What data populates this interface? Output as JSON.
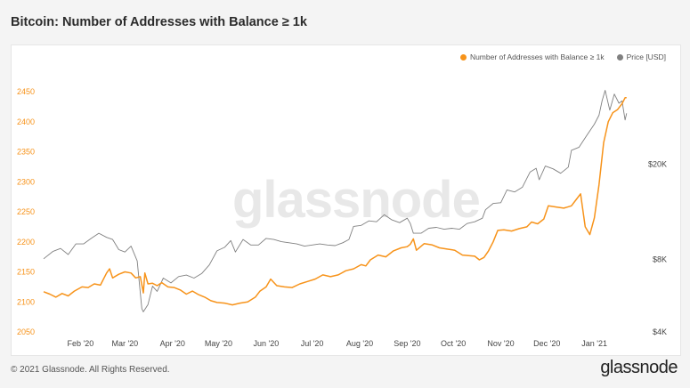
{
  "title": "Bitcoin: Number of Addresses with Balance ≥ 1k",
  "legend": [
    {
      "label": "Number of Addresses with Balance ≥ 1k",
      "color": "#f7931a"
    },
    {
      "label": "Price [USD]",
      "color": "#808080"
    }
  ],
  "watermark": "glassnode",
  "footer": {
    "copyright": "© 2021 Glassnode. All Rights Reserved.",
    "logo": "glassnode"
  },
  "chart_data": {
    "type": "line",
    "x_range": [
      "2020-01-08",
      "2021-01-25"
    ],
    "x_ticks": [
      {
        "label": "Feb '20",
        "date": "2020-02-01"
      },
      {
        "label": "Mar '20",
        "date": "2020-03-01"
      },
      {
        "label": "Apr '20",
        "date": "2020-04-01"
      },
      {
        "label": "May '20",
        "date": "2020-05-01"
      },
      {
        "label": "Jun '20",
        "date": "2020-06-01"
      },
      {
        "label": "Jul '20",
        "date": "2020-07-01"
      },
      {
        "label": "Aug '20",
        "date": "2020-08-01"
      },
      {
        "label": "Sep '20",
        "date": "2020-09-01"
      },
      {
        "label": "Oct '20",
        "date": "2020-10-01"
      },
      {
        "label": "Nov '20",
        "date": "2020-11-01"
      },
      {
        "label": "Dec '20",
        "date": "2020-12-01"
      },
      {
        "label": "Jan '21",
        "date": "2021-01-01"
      }
    ],
    "y_left": {
      "ylim": [
        2050,
        2450
      ],
      "ticks": [
        2050,
        2100,
        2150,
        2200,
        2250,
        2300,
        2350,
        2400,
        2450
      ],
      "color": "#f7931a"
    },
    "y_right": {
      "scale": "log",
      "ylim": [
        4000,
        40000
      ],
      "ticks": [
        {
          "value": 4000,
          "label": "$4K"
        },
        {
          "value": 8000,
          "label": "$8K"
        },
        {
          "value": 20000,
          "label": "$20K"
        }
      ],
      "color": "#444444"
    },
    "grid": false,
    "series": [
      {
        "name": "Number of Addresses with Balance ≥ 1k",
        "axis": "left",
        "color": "#f7931a",
        "points": [
          [
            "2020-01-08",
            2117
          ],
          [
            "2020-01-12",
            2113
          ],
          [
            "2020-01-16",
            2108
          ],
          [
            "2020-01-20",
            2114
          ],
          [
            "2020-01-24",
            2110
          ],
          [
            "2020-01-28",
            2118
          ],
          [
            "2020-02-02",
            2125
          ],
          [
            "2020-02-06",
            2124
          ],
          [
            "2020-02-10",
            2130
          ],
          [
            "2020-02-14",
            2128
          ],
          [
            "2020-02-18",
            2148
          ],
          [
            "2020-02-20",
            2155
          ],
          [
            "2020-02-22",
            2140
          ],
          [
            "2020-02-26",
            2146
          ],
          [
            "2020-03-01",
            2150
          ],
          [
            "2020-03-05",
            2148
          ],
          [
            "2020-03-08",
            2140
          ],
          [
            "2020-03-11",
            2142
          ],
          [
            "2020-03-13",
            2115
          ],
          [
            "2020-03-14",
            2148
          ],
          [
            "2020-03-16",
            2130
          ],
          [
            "2020-03-19",
            2131
          ],
          [
            "2020-03-22",
            2127
          ],
          [
            "2020-03-25",
            2132
          ],
          [
            "2020-03-29",
            2125
          ],
          [
            "2020-04-02",
            2124
          ],
          [
            "2020-04-06",
            2120
          ],
          [
            "2020-04-10",
            2113
          ],
          [
            "2020-04-14",
            2118
          ],
          [
            "2020-04-18",
            2112
          ],
          [
            "2020-04-22",
            2108
          ],
          [
            "2020-04-26",
            2102
          ],
          [
            "2020-04-30",
            2099
          ],
          [
            "2020-05-05",
            2098
          ],
          [
            "2020-05-10",
            2095
          ],
          [
            "2020-05-15",
            2098
          ],
          [
            "2020-05-20",
            2100
          ],
          [
            "2020-05-25",
            2108
          ],
          [
            "2020-05-28",
            2118
          ],
          [
            "2020-06-01",
            2125
          ],
          [
            "2020-06-04",
            2138
          ],
          [
            "2020-06-08",
            2127
          ],
          [
            "2020-06-13",
            2125
          ],
          [
            "2020-06-18",
            2124
          ],
          [
            "2020-06-23",
            2130
          ],
          [
            "2020-06-28",
            2134
          ],
          [
            "2020-07-03",
            2138
          ],
          [
            "2020-07-08",
            2145
          ],
          [
            "2020-07-13",
            2142
          ],
          [
            "2020-07-18",
            2145
          ],
          [
            "2020-07-23",
            2152
          ],
          [
            "2020-07-28",
            2155
          ],
          [
            "2020-08-02",
            2162
          ],
          [
            "2020-08-05",
            2160
          ],
          [
            "2020-08-08",
            2170
          ],
          [
            "2020-08-13",
            2178
          ],
          [
            "2020-08-18",
            2175
          ],
          [
            "2020-08-23",
            2185
          ],
          [
            "2020-08-28",
            2190
          ],
          [
            "2020-09-01",
            2192
          ],
          [
            "2020-09-03",
            2196
          ],
          [
            "2020-09-05",
            2205
          ],
          [
            "2020-09-07",
            2186
          ],
          [
            "2020-09-12",
            2197
          ],
          [
            "2020-09-17",
            2195
          ],
          [
            "2020-09-22",
            2190
          ],
          [
            "2020-09-27",
            2188
          ],
          [
            "2020-10-02",
            2186
          ],
          [
            "2020-10-07",
            2178
          ],
          [
            "2020-10-11",
            2177
          ],
          [
            "2020-10-15",
            2176
          ],
          [
            "2020-10-18",
            2170
          ],
          [
            "2020-10-21",
            2174
          ],
          [
            "2020-10-24",
            2185
          ],
          [
            "2020-10-27",
            2200
          ],
          [
            "2020-10-30",
            2219
          ],
          [
            "2020-11-03",
            2220
          ],
          [
            "2020-11-08",
            2218
          ],
          [
            "2020-11-13",
            2222
          ],
          [
            "2020-11-18",
            2225
          ],
          [
            "2020-11-21",
            2233
          ],
          [
            "2020-11-25",
            2230
          ],
          [
            "2020-11-29",
            2238
          ],
          [
            "2020-12-02",
            2260
          ],
          [
            "2020-12-07",
            2258
          ],
          [
            "2020-12-12",
            2256
          ],
          [
            "2020-12-17",
            2260
          ],
          [
            "2020-12-20",
            2270
          ],
          [
            "2020-12-23",
            2280
          ],
          [
            "2020-12-26",
            2225
          ],
          [
            "2020-12-29",
            2212
          ],
          [
            "2021-01-01",
            2240
          ],
          [
            "2021-01-04",
            2295
          ],
          [
            "2021-01-07",
            2365
          ],
          [
            "2021-01-10",
            2400
          ],
          [
            "2021-01-13",
            2415
          ],
          [
            "2021-01-16",
            2420
          ],
          [
            "2021-01-19",
            2430
          ],
          [
            "2021-01-21",
            2440
          ],
          [
            "2021-01-22",
            2440
          ]
        ]
      },
      {
        "name": "Price [USD]",
        "axis": "right",
        "color": "#808080",
        "points": [
          [
            "2020-01-08",
            8060
          ],
          [
            "2020-01-14",
            8650
          ],
          [
            "2020-01-19",
            8900
          ],
          [
            "2020-01-24",
            8400
          ],
          [
            "2020-01-29",
            9300
          ],
          [
            "2020-02-03",
            9300
          ],
          [
            "2020-02-08",
            9800
          ],
          [
            "2020-02-13",
            10300
          ],
          [
            "2020-02-18",
            9900
          ],
          [
            "2020-02-22",
            9700
          ],
          [
            "2020-02-26",
            8800
          ],
          [
            "2020-03-01",
            8600
          ],
          [
            "2020-03-05",
            9100
          ],
          [
            "2020-03-09",
            7900
          ],
          [
            "2020-03-12",
            5000
          ],
          [
            "2020-03-13",
            4850
          ],
          [
            "2020-03-16",
            5200
          ],
          [
            "2020-03-19",
            6200
          ],
          [
            "2020-03-22",
            5900
          ],
          [
            "2020-03-26",
            6700
          ],
          [
            "2020-03-31",
            6400
          ],
          [
            "2020-04-05",
            6800
          ],
          [
            "2020-04-10",
            6900
          ],
          [
            "2020-04-15",
            6700
          ],
          [
            "2020-04-20",
            7000
          ],
          [
            "2020-04-25",
            7600
          ],
          [
            "2020-04-30",
            8700
          ],
          [
            "2020-05-05",
            9000
          ],
          [
            "2020-05-09",
            9600
          ],
          [
            "2020-05-12",
            8600
          ],
          [
            "2020-05-17",
            9700
          ],
          [
            "2020-05-22",
            9200
          ],
          [
            "2020-05-27",
            9200
          ],
          [
            "2020-06-01",
            9800
          ],
          [
            "2020-06-06",
            9700
          ],
          [
            "2020-06-11",
            9500
          ],
          [
            "2020-06-16",
            9400
          ],
          [
            "2020-06-21",
            9300
          ],
          [
            "2020-06-26",
            9100
          ],
          [
            "2020-07-01",
            9200
          ],
          [
            "2020-07-06",
            9300
          ],
          [
            "2020-07-11",
            9200
          ],
          [
            "2020-07-16",
            9150
          ],
          [
            "2020-07-21",
            9400
          ],
          [
            "2020-07-25",
            9700
          ],
          [
            "2020-07-28",
            11000
          ],
          [
            "2020-08-02",
            11100
          ],
          [
            "2020-08-07",
            11600
          ],
          [
            "2020-08-12",
            11500
          ],
          [
            "2020-08-17",
            12300
          ],
          [
            "2020-08-22",
            11700
          ],
          [
            "2020-08-27",
            11400
          ],
          [
            "2020-09-01",
            11900
          ],
          [
            "2020-09-03",
            11300
          ],
          [
            "2020-09-05",
            10300
          ],
          [
            "2020-09-10",
            10300
          ],
          [
            "2020-09-15",
            10800
          ],
          [
            "2020-09-20",
            10900
          ],
          [
            "2020-09-25",
            10700
          ],
          [
            "2020-09-30",
            10800
          ],
          [
            "2020-10-05",
            10700
          ],
          [
            "2020-10-10",
            11300
          ],
          [
            "2020-10-15",
            11500
          ],
          [
            "2020-10-20",
            11900
          ],
          [
            "2020-10-22",
            12900
          ],
          [
            "2020-10-27",
            13700
          ],
          [
            "2020-11-01",
            13800
          ],
          [
            "2020-11-05",
            15600
          ],
          [
            "2020-11-10",
            15300
          ],
          [
            "2020-11-15",
            16000
          ],
          [
            "2020-11-20",
            18500
          ],
          [
            "2020-11-24",
            19200
          ],
          [
            "2020-11-26",
            17200
          ],
          [
            "2020-11-30",
            19600
          ],
          [
            "2020-12-05",
            19100
          ],
          [
            "2020-12-10",
            18300
          ],
          [
            "2020-12-15",
            19400
          ],
          [
            "2020-12-17",
            22800
          ],
          [
            "2020-12-22",
            23500
          ],
          [
            "2020-12-27",
            26300
          ],
          [
            "2021-01-01",
            29300
          ],
          [
            "2021-01-04",
            31900
          ],
          [
            "2021-01-06",
            36700
          ],
          [
            "2021-01-08",
            40500
          ],
          [
            "2021-01-11",
            33500
          ],
          [
            "2021-01-14",
            39100
          ],
          [
            "2021-01-17",
            35800
          ],
          [
            "2021-01-19",
            36600
          ],
          [
            "2021-01-21",
            30500
          ],
          [
            "2021-01-22",
            32500
          ]
        ]
      }
    ]
  }
}
